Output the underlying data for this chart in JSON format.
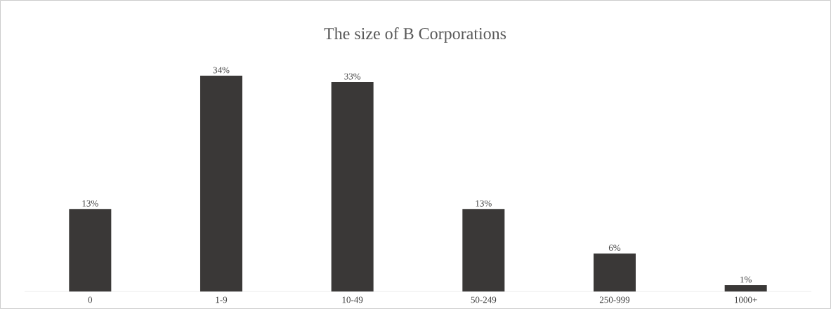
{
  "chart_data": {
    "type": "bar",
    "title": "The size of B Corporations",
    "categories": [
      "0",
      "1-9",
      "10-49",
      "50-249",
      "250-999",
      "1000+"
    ],
    "values": [
      13,
      34,
      33,
      13,
      6,
      1
    ],
    "value_labels": [
      "13%",
      "34%",
      "33%",
      "13%",
      "6%",
      "1%"
    ],
    "color": "#3a3837"
  }
}
